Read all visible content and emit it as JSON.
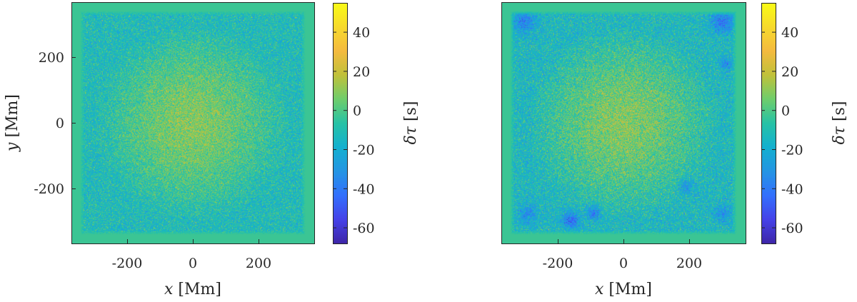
{
  "chart_data": [
    {
      "type": "heatmap",
      "title": "",
      "xlabel": {
        "var": "x",
        "unit": " [Mm]"
      },
      "ylabel": {
        "var": "y",
        "unit": " [Mm]"
      },
      "xlim": [
        -370,
        370
      ],
      "ylim": [
        -370,
        370
      ],
      "xticks": [
        -200,
        0,
        200
      ],
      "yticks": [
        -200,
        0,
        200
      ],
      "clim": [
        -68,
        55
      ],
      "colorbar": {
        "label": {
          "var": "δτ",
          "unit": " [s]"
        },
        "ticks": [
          -60,
          -40,
          -20,
          0,
          20,
          40
        ]
      },
      "field": {
        "description": "noisy travel-time map, positive near centre, slightly negative toward edges",
        "center_value": 10,
        "edge_value": -12,
        "border_value": -3,
        "noise": 9,
        "blue_spots": []
      }
    },
    {
      "type": "heatmap",
      "title": "",
      "xlabel": {
        "var": "x",
        "unit": " [Mm]"
      },
      "ylabel": {
        "var": "",
        "unit": ""
      },
      "xlim": [
        -370,
        370
      ],
      "ylim": [
        -370,
        370
      ],
      "xticks": [
        -200,
        0,
        200
      ],
      "yticks": [],
      "clim": [
        -68,
        55
      ],
      "colorbar": {
        "label": {
          "var": "δτ",
          "unit": " [s]"
        },
        "ticks": [
          -60,
          -40,
          -20,
          0,
          20,
          40
        ]
      },
      "field": {
        "description": "noisy travel-time map with localized negative patches",
        "center_value": 10,
        "edge_value": -14,
        "border_value": -3,
        "noise": 10,
        "blue_spots": [
          {
            "x": -160,
            "y": -300,
            "r": 25,
            "v": -30
          },
          {
            "x": -90,
            "y": -275,
            "r": 20,
            "v": -25
          },
          {
            "x": -300,
            "y": 310,
            "r": 35,
            "v": -22
          },
          {
            "x": 300,
            "y": 310,
            "r": 35,
            "v": -25
          },
          {
            "x": 310,
            "y": 180,
            "r": 18,
            "v": -20
          },
          {
            "x": 190,
            "y": -195,
            "r": 22,
            "v": -18
          },
          {
            "x": -290,
            "y": -280,
            "r": 28,
            "v": -18
          },
          {
            "x": 300,
            "y": -280,
            "r": 25,
            "v": -18
          }
        ]
      }
    }
  ],
  "colormap": [
    "#3e26a8",
    "#4542e8",
    "#3370fd",
    "#2495e3",
    "#14b0cf",
    "#27c2a5",
    "#6fcd6b",
    "#c0c13a",
    "#f4ba3f",
    "#f7da2c",
    "#f9fb15"
  ]
}
